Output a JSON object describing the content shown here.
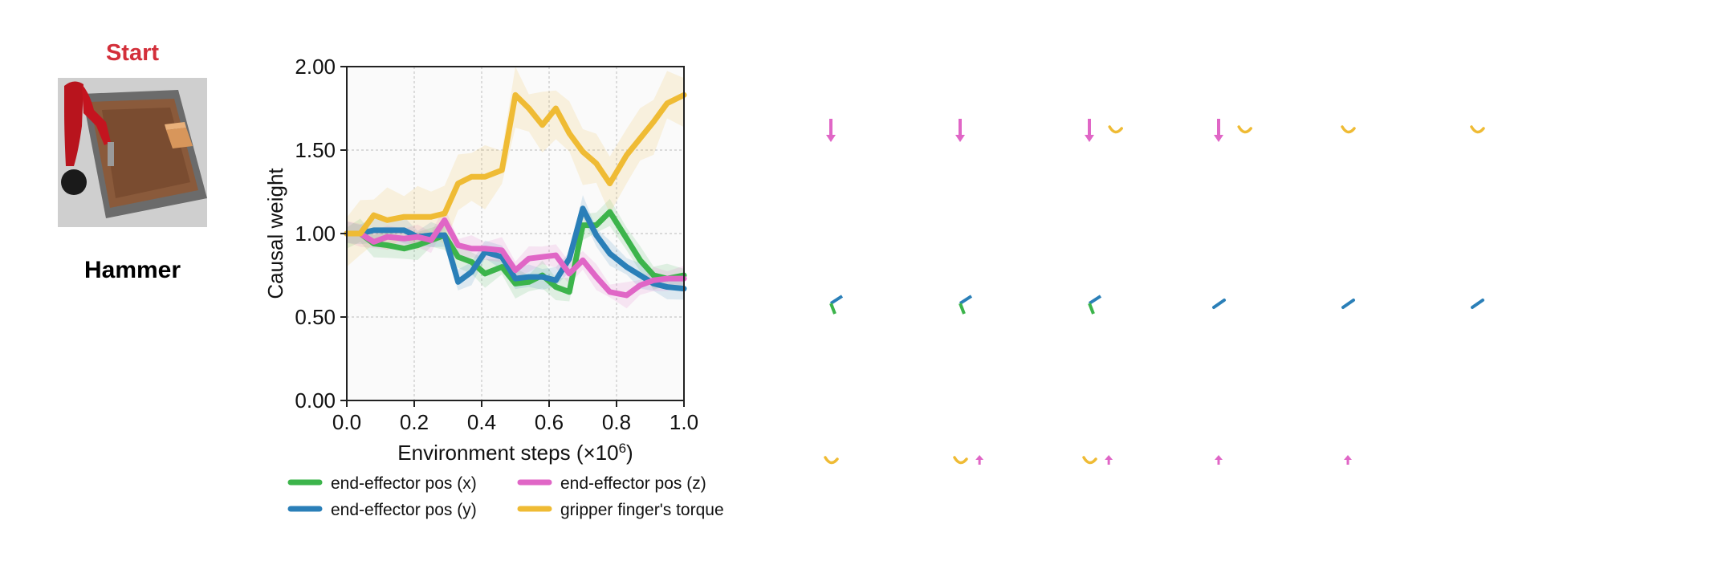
{
  "header": {
    "status_label": "Start",
    "task_name": "Hammer"
  },
  "colors": {
    "x": "#3cb44b",
    "y": "#2a7fb8",
    "z": "#e066c6",
    "torque": "#efbb34",
    "status": "#d32f3a"
  },
  "chart_data": {
    "type": "line",
    "title": "",
    "xlabel_main": "Environment steps (×10",
    "xlabel_exp": "6",
    "xlabel_tail": ")",
    "ylabel": "Causal weight",
    "xlim": [
      0,
      1
    ],
    "ylim": [
      0,
      2
    ],
    "xticks": [
      "0.0",
      "0.2",
      "0.4",
      "0.6",
      "0.8",
      "1.0"
    ],
    "yticks": [
      "0.00",
      "0.50",
      "1.00",
      "1.50",
      "2.00"
    ],
    "grid": true,
    "legend_position": "bottom",
    "x": [
      0.0,
      0.04,
      0.08,
      0.12,
      0.17,
      0.21,
      0.25,
      0.29,
      0.33,
      0.37,
      0.41,
      0.46,
      0.5,
      0.54,
      0.58,
      0.62,
      0.66,
      0.7,
      0.74,
      0.78,
      0.83,
      0.87,
      0.91,
      0.95,
      1.0
    ],
    "series": [
      {
        "name": "end-effector pos (x)",
        "color_key": "x",
        "values": [
          1.0,
          1.0,
          0.94,
          0.93,
          0.91,
          0.93,
          0.96,
          0.99,
          0.86,
          0.83,
          0.76,
          0.8,
          0.7,
          0.71,
          0.75,
          0.68,
          0.65,
          1.05,
          1.05,
          1.13,
          0.97,
          0.84,
          0.75,
          0.73,
          0.75
        ],
        "band": 0.09
      },
      {
        "name": "end-effector pos (y)",
        "color_key": "y",
        "values": [
          1.0,
          1.0,
          1.02,
          1.02,
          1.02,
          0.98,
          0.99,
          0.99,
          0.71,
          0.77,
          0.89,
          0.86,
          0.73,
          0.74,
          0.74,
          0.72,
          0.85,
          1.15,
          0.99,
          0.88,
          0.8,
          0.75,
          0.7,
          0.68,
          0.67
        ],
        "band": 0.08
      },
      {
        "name": "end-effector pos (z)",
        "color_key": "z",
        "values": [
          1.0,
          1.0,
          0.95,
          0.98,
          0.97,
          0.98,
          0.96,
          1.08,
          0.93,
          0.91,
          0.91,
          0.9,
          0.78,
          0.85,
          0.86,
          0.87,
          0.76,
          0.84,
          0.74,
          0.65,
          0.63,
          0.69,
          0.72,
          0.73,
          0.73
        ],
        "band": 0.08
      },
      {
        "name": "gripper finger's torque",
        "color_key": "torque",
        "values": [
          1.0,
          1.0,
          1.11,
          1.08,
          1.1,
          1.1,
          1.1,
          1.12,
          1.3,
          1.34,
          1.34,
          1.38,
          1.83,
          1.75,
          1.65,
          1.75,
          1.6,
          1.49,
          1.42,
          1.3,
          1.47,
          1.57,
          1.67,
          1.78,
          1.83
        ],
        "band": 0.2
      }
    ]
  },
  "glyph_rows": [
    {
      "row": "top",
      "cells": [
        {
          "x": 1.0,
          "kind": "arrow-down",
          "color_key": "z"
        },
        {
          "x": 2.0,
          "kind": "arrow-down",
          "color_key": "z"
        },
        {
          "x": 3.0,
          "kind": "arrow-down",
          "color_key": "z"
        },
        {
          "x": 3.2,
          "kind": "arc",
          "color_key": "torque"
        },
        {
          "x": 4.0,
          "kind": "arrow-down",
          "color_key": "z"
        },
        {
          "x": 4.2,
          "kind": "arc",
          "color_key": "torque"
        },
        {
          "x": 5.0,
          "kind": "arc",
          "color_key": "torque"
        },
        {
          "x": 6.0,
          "kind": "arc",
          "color_key": "torque"
        }
      ]
    },
    {
      "row": "middle",
      "cells": [
        {
          "x": 1.0,
          "kind": "bend",
          "color_key": "y"
        },
        {
          "x": 2.0,
          "kind": "bend",
          "color_key": "y"
        },
        {
          "x": 3.0,
          "kind": "bend",
          "color_key": "y"
        },
        {
          "x": 4.0,
          "kind": "diag-arrow",
          "color_key": "y"
        },
        {
          "x": 5.0,
          "kind": "diag-arrow",
          "color_key": "y"
        },
        {
          "x": 6.0,
          "kind": "diag-arrow",
          "color_key": "y"
        }
      ]
    },
    {
      "row": "bottom",
      "cells": [
        {
          "x": 1.0,
          "kind": "arc",
          "color_key": "torque"
        },
        {
          "x": 2.0,
          "kind": "arc",
          "color_key": "torque"
        },
        {
          "x": 2.15,
          "kind": "arrow-up",
          "color_key": "z"
        },
        {
          "x": 3.0,
          "kind": "arc",
          "color_key": "torque"
        },
        {
          "x": 3.15,
          "kind": "arrow-up",
          "color_key": "z"
        },
        {
          "x": 4.0,
          "kind": "arrow-up",
          "color_key": "z"
        },
        {
          "x": 5.0,
          "kind": "arrow-up",
          "color_key": "z"
        }
      ]
    }
  ]
}
